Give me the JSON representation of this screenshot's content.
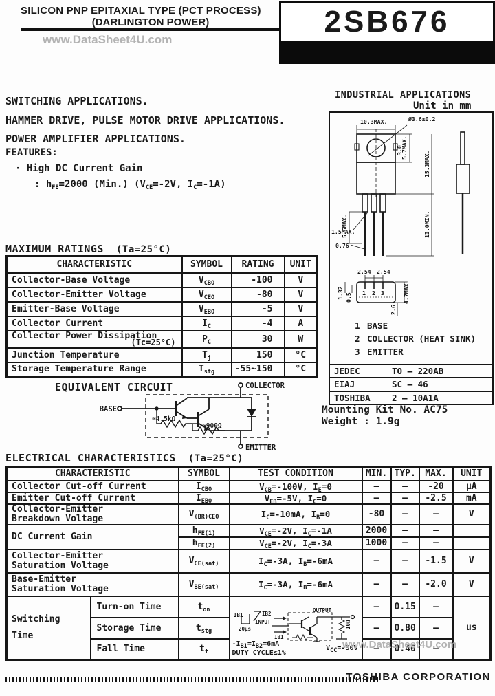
{
  "header": {
    "title_line1": "SILICON PNP EPITAXIAL TYPE (PCT PROCESS)",
    "title_line2": "(DARLINGTON POWER)",
    "watermark": "www.DataSheet4U.com",
    "part_number": "2SB676"
  },
  "applications": {
    "lines": [
      "SWITCHING APPLICATIONS.",
      "HAMMER DRIVE, PULSE MOTOR DRIVE APPLICATIONS.",
      "POWER AMPLIFIER APPLICATIONS."
    ]
  },
  "features": {
    "heading": "FEATURES:",
    "bullet": "·",
    "item": "High DC Current Gain",
    "detail": ": h~FE~=2000 (Min.) (V~CE~=-2V, I~C~=-1A)"
  },
  "package": {
    "heading": "INDUSTRIAL APPLICATIONS",
    "unit_note": "Unit in mm",
    "dims": {
      "front_width": "10.3MAX.",
      "hole": "Ø3.6±0.2",
      "hole_offset": "3.0",
      "tab_height": "5.7MAX.",
      "body_height": "15.3MAX.",
      "lead_length": "13.0MIN.",
      "shoulder_length": "5.6MAX.",
      "shoulder_width": "1.5MAX.",
      "lead_width": "0.76",
      "pitch_left": "2.54",
      "pitch_right": "2.54",
      "seat_height": "4.7MAX.",
      "offset1": "1.32",
      "offset2": "0.5",
      "depth": "2.6",
      "pin1": "1",
      "pin2": "2",
      "pin3": "3"
    },
    "pins": [
      {
        "no": "1",
        "label": "BASE"
      },
      {
        "no": "2",
        "label": "COLLECTOR (HEAT SINK)"
      },
      {
        "no": "3",
        "label": "EMITTER"
      }
    ],
    "standards": [
      {
        "org": "JEDEC",
        "code": "TO — 220AB"
      },
      {
        "org": "EIAJ",
        "code": "SC — 46"
      },
      {
        "org": "TOSHIBA",
        "code": "2 — 10A1A"
      }
    ],
    "mounting_kit": "Mounting Kit No. AC75",
    "weight": "Weight : 1.9g"
  },
  "max_ratings": {
    "heading": "MAXIMUM RATINGS",
    "condition": "(Ta=25°C)",
    "columns": [
      "CHARACTERISTIC",
      "SYMBOL",
      "RATING",
      "UNIT"
    ],
    "rows": [
      {
        "characteristic": "Collector-Base Voltage",
        "symbol": "V~CBO~",
        "rating": "-100",
        "unit": "V"
      },
      {
        "characteristic": "Collector-Emitter Voltage",
        "symbol": "V~CEO~",
        "rating": "-80",
        "unit": "V"
      },
      {
        "characteristic": "Emitter-Base Voltage",
        "symbol": "V~EBO~",
        "rating": "-5",
        "unit": "V"
      },
      {
        "characteristic": "Collector Current",
        "symbol": "I~C~",
        "rating": "-4",
        "unit": "A"
      },
      {
        "characteristic": "Collector Power Dissipation",
        "note": "(Tc=25°C)",
        "symbol": "P~C~",
        "rating": "30",
        "unit": "W"
      },
      {
        "characteristic": "Junction Temperature",
        "symbol": "T~j~",
        "rating": "150",
        "unit": "°C"
      },
      {
        "characteristic": "Storage Temperature Range",
        "symbol": "T~stg~",
        "rating": "-55~150",
        "unit": "°C"
      }
    ]
  },
  "equivalent_circuit": {
    "heading": "EQUIVALENT CIRCUIT",
    "labels": {
      "base": "BASE",
      "collector": "COLLECTOR",
      "emitter": "EMITTER",
      "r1": "≃4.5kΩ",
      "r2": "≃900Ω"
    }
  },
  "electrical": {
    "heading": "ELECTRICAL CHARACTERISTICS",
    "condition": "(Ta=25°C)",
    "columns": [
      "CHARACTERISTIC",
      "SYMBOL",
      "TEST CONDITION",
      "MIN.",
      "TYP.",
      "MAX.",
      "UNIT"
    ],
    "rows": [
      {
        "characteristic": "Collector Cut-off Current",
        "characteristic2": "",
        "symbol": "I~CBO~",
        "condition": "V~CB~=-100V, I~E~=0",
        "min": "–",
        "typ": "–",
        "max": "-20",
        "unit": "μA"
      },
      {
        "characteristic": "Emitter Cut-off Current",
        "characteristic2": "",
        "symbol": "I~EBO~",
        "condition": "V~EB~=-5V, I~C~=0",
        "min": "–",
        "typ": "–",
        "max": "-2.5",
        "unit": "mA"
      },
      {
        "characteristic": "Collector-Emitter",
        "characteristic2": "Breakdown Voltage",
        "symbol": "V~(BR)CEO~",
        "condition": "I~C~=-10mA, I~B~=0",
        "min": "-80",
        "typ": "–",
        "max": "–",
        "unit": "V"
      }
    ],
    "gain": {
      "characteristic": "DC Current Gain",
      "rows": [
        {
          "symbol": "h~FE(1)~",
          "condition": "V~CE~=-2V, I~C~=-1A",
          "min": "2000",
          "typ": "–",
          "max": "–",
          "unit": ""
        },
        {
          "symbol": "h~FE(2)~",
          "condition": "V~CE~=-2V, I~C~=-3A",
          "min": "1000",
          "typ": "–",
          "max": "–",
          "unit": ""
        }
      ]
    },
    "sat_rows": [
      {
        "characteristic": "Collector-Emitter",
        "characteristic2": "Saturation Voltage",
        "symbol": "V~CE(sat)~",
        "condition": "I~C~=-3A, I~B~=-6mA",
        "min": "–",
        "typ": "–",
        "max": "-1.5",
        "unit": "V"
      },
      {
        "characteristic": "Base-Emitter",
        "characteristic2": "Saturation Voltage",
        "symbol": "V~BE(sat)~",
        "condition": "I~C~=-3A, I~B~=-6mA",
        "min": "–",
        "typ": "–",
        "max": "-2.0",
        "unit": "V"
      }
    ],
    "switching": {
      "group_label": "Switching Time",
      "rows": [
        {
          "name": "Turn-on Time",
          "symbol": "t~on~",
          "min": "–",
          "typ": "0.15",
          "max": "–"
        },
        {
          "name": "Storage Time",
          "symbol": "t~stg~",
          "min": "–",
          "typ": "0.80",
          "max": "–"
        },
        {
          "name": "Fall Time",
          "symbol": "t~f~",
          "min": "–",
          "typ": "0.40",
          "max": "–"
        }
      ],
      "unit": "us",
      "circuit": {
        "ib1": "IB1",
        "ib2": "IB2",
        "input": "INPUT",
        "output": "OUTPUT",
        "pulse_width": "20μs",
        "load": "10Ω",
        "vcc": "V~CC~=-30V",
        "cond1": "-I~B1~=I~B2~=6mA",
        "cond2": "DUTY CYCLE≤1%"
      }
    }
  },
  "footer": {
    "watermark": "www.DataSheet4U.com",
    "company": "TOSHIBA CORPORATION"
  }
}
